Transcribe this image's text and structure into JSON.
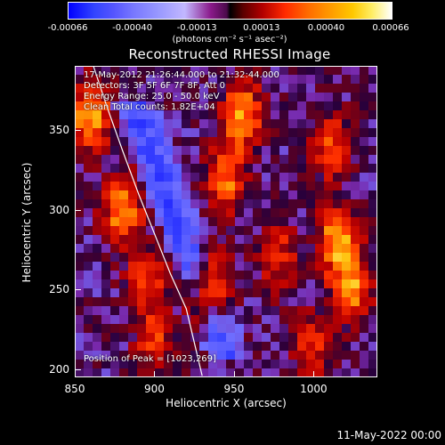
{
  "colorbar": {
    "tick_labels": [
      "-0.00066",
      "-0.00040",
      "-0.00013",
      "0.00013",
      "0.00040",
      "0.00066"
    ],
    "units": "(photons cm⁻² s⁻¹ asec⁻²)"
  },
  "title": "Reconstructed RHESSI Image",
  "info": {
    "time_range": "17-May-2012 21:26:44.000 to 21:32:44.000",
    "detectors": "Detectors: 3F 5F 6F 7F 8F, Att 0",
    "energy": "Energy Range: 25.0 - 50.0 keV",
    "clean": "Clean    Total counts: 1.82E+04",
    "peak": "Position of Peak = [1023,269]"
  },
  "footer": "11-May-2022 00:00",
  "colors": {
    "limb": "#ffffff",
    "frame": "#ffffff",
    "background": "#000000"
  },
  "chart_data": {
    "type": "heatmap",
    "title": "Reconstructed RHESSI Image",
    "xlabel": "Heliocentric X (arcsec)",
    "ylabel": "Heliocentric Y (arcsec)",
    "xlim": [
      850,
      1040
    ],
    "ylim": [
      195,
      390
    ],
    "x_ticks": [
      850,
      900,
      950,
      1000
    ],
    "y_ticks": [
      200,
      250,
      300,
      350
    ],
    "colorbar_range": [
      -0.00066,
      0.00066
    ],
    "peak_position": [
      1023,
      269
    ],
    "solar_limb": [
      [
        860,
        395
      ],
      [
        870,
        365
      ],
      [
        880,
        337
      ],
      [
        890,
        310
      ],
      [
        900,
        285
      ],
      [
        910,
        260
      ],
      [
        920,
        238
      ],
      [
        930,
        196
      ]
    ],
    "bright_sources": [
      {
        "x": 860,
        "y": 360,
        "level": 0.9
      },
      {
        "x": 880,
        "y": 300,
        "level": 0.8
      },
      {
        "x": 895,
        "y": 255,
        "level": 0.55
      },
      {
        "x": 900,
        "y": 215,
        "level": 0.5
      },
      {
        "x": 935,
        "y": 250,
        "level": 1.0
      },
      {
        "x": 945,
        "y": 320,
        "level": 0.7
      },
      {
        "x": 955,
        "y": 360,
        "level": 0.8
      },
      {
        "x": 1015,
        "y": 280,
        "level": 0.85
      },
      {
        "x": 1025,
        "y": 250,
        "level": 0.75
      },
      {
        "x": 1010,
        "y": 340,
        "level": 0.55
      },
      {
        "x": 1000,
        "y": 215,
        "level": 0.5
      },
      {
        "x": 978,
        "y": 270,
        "level": 0.5
      }
    ]
  }
}
